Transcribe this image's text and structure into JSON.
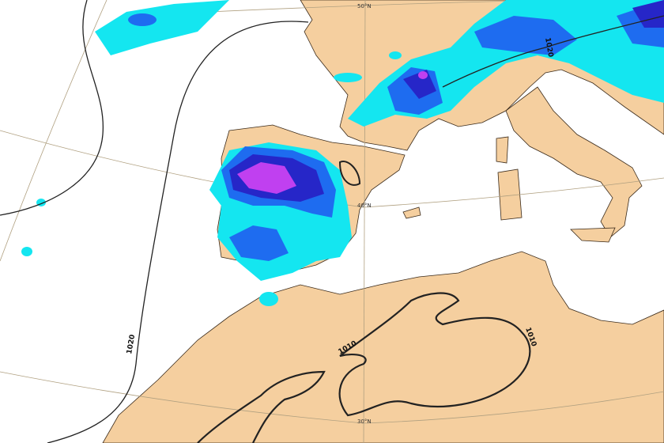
{
  "map": {
    "colors": {
      "sea": "#ffffff",
      "land": "#f5cf9f",
      "border": "#8a6a4a",
      "precip_light": "#14e6f0",
      "precip_moderate": "#1e6cf0",
      "precip_heavy": "#2626c8",
      "precip_extreme": "#c040f0",
      "isobar": "#222222"
    },
    "graticule_labels": {
      "lat50": "50°N",
      "lat40": "40°N",
      "lat30": "30°N"
    },
    "isobar_labels": {
      "a": "1020",
      "b": "1020",
      "c": "1010",
      "d": "1010"
    }
  }
}
